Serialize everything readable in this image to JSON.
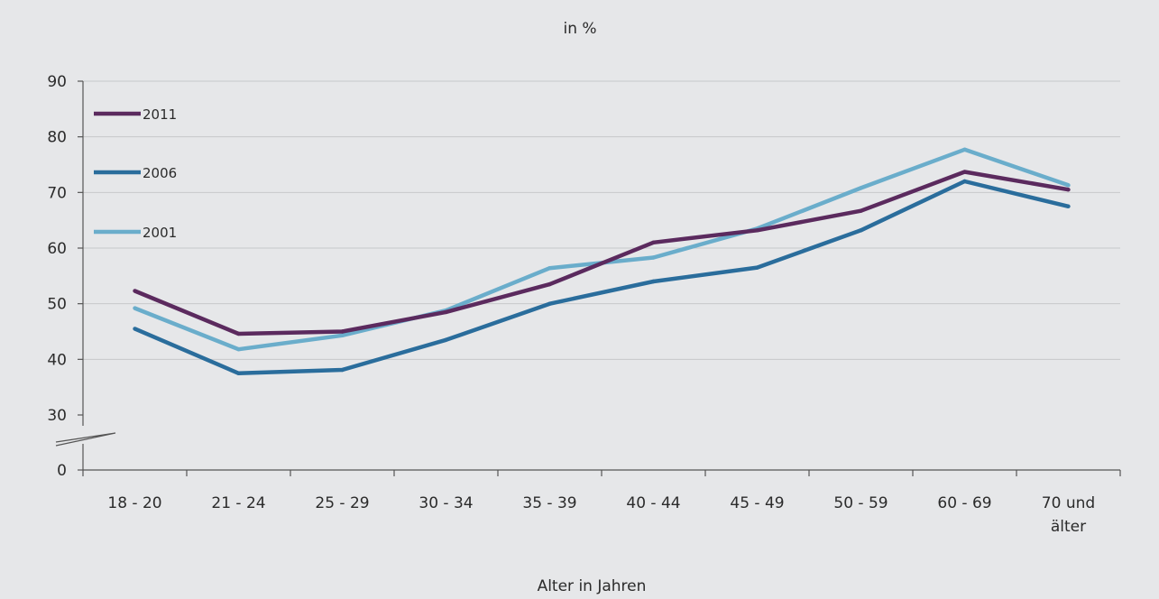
{
  "chart_data": {
    "type": "line",
    "title": "in %",
    "xlabel": "Alter in Jahren",
    "ylabel": "",
    "categories": [
      "18 - 20",
      "21 - 24",
      "25 - 29",
      "30 - 34",
      "35 - 39",
      "40 - 44",
      "45 - 49",
      "50 - 59",
      "60 - 69",
      "70 und älter"
    ],
    "y_ticks": [
      0,
      30,
      40,
      50,
      60,
      70,
      80,
      90
    ],
    "ylim": [
      30,
      90
    ],
    "axis_break": "between 0 and 30",
    "grid": true,
    "legend_position": "top-left",
    "series": [
      {
        "name": "2011",
        "color": "#5b2a5e",
        "values": [
          52.3,
          44.6,
          45.0,
          48.5,
          53.5,
          61.0,
          63.2,
          66.7,
          73.7,
          70.5
        ]
      },
      {
        "name": "2006",
        "color": "#2a6d9c",
        "values": [
          45.5,
          37.5,
          38.1,
          43.5,
          50.0,
          54.0,
          56.5,
          63.2,
          72.0,
          67.5
        ]
      },
      {
        "name": "2001",
        "color": "#6aadcb",
        "values": [
          49.2,
          41.8,
          44.3,
          48.8,
          56.4,
          58.3,
          63.5,
          70.8,
          77.7,
          71.3
        ]
      }
    ]
  }
}
